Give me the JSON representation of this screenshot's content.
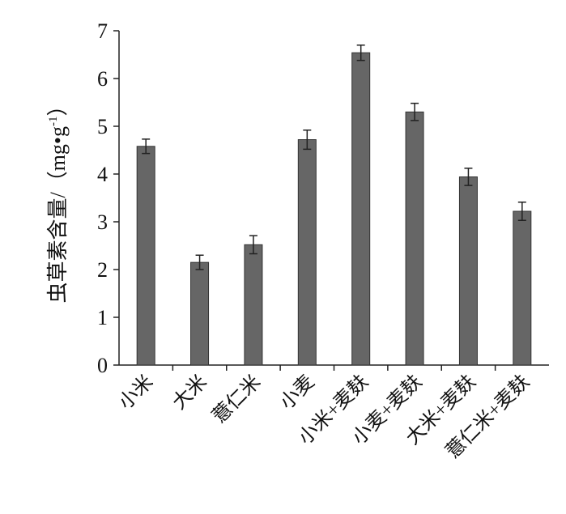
{
  "chart_data": {
    "type": "bar",
    "y_label": "虫草素含量/（mg•g",
    "y_label_sup": "-1",
    "y_label_end": "）",
    "categories": [
      "小米",
      "大米",
      "薏仁米",
      "小麦",
      "小米+麦麸",
      "小麦+麦麸",
      "大米+麦麸",
      "薏仁米+麦麸"
    ],
    "values": [
      4.58,
      2.15,
      2.52,
      4.72,
      6.54,
      5.3,
      3.94,
      3.22
    ],
    "errors": [
      0.15,
      0.15,
      0.19,
      0.2,
      0.16,
      0.18,
      0.18,
      0.19
    ],
    "color": "#666666",
    "ylim": [
      0,
      7
    ],
    "yticks": [
      0,
      1,
      2,
      3,
      4,
      5,
      6,
      7
    ],
    "grid": false
  }
}
